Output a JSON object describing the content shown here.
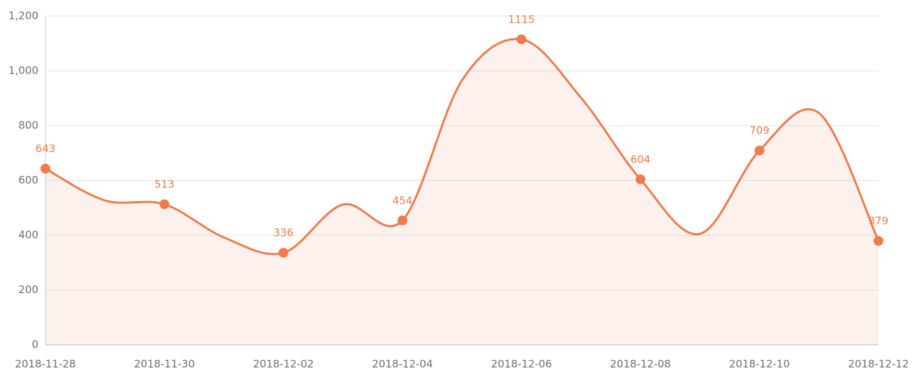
{
  "chart_data": {
    "type": "line",
    "categories": [
      "2018-11-28",
      null,
      "2018-11-30",
      null,
      "2018-12-02",
      null,
      "2018-12-04",
      null,
      "2018-12-06",
      null,
      "2018-12-08",
      null,
      "2018-12-10",
      null,
      "2018-12-12"
    ],
    "series": [
      {
        "color": "#f07a4c",
        "values": [
          643,
          527,
          513,
          392,
          336,
          512,
          454,
          965,
          1115,
          902,
          604,
          405,
          709,
          846,
          379
        ]
      }
    ],
    "ylim": [
      0,
      1200
    ],
    "yticks": [
      0,
      200,
      400,
      600,
      800,
      {
        "value": 1000,
        "label": "1,000"
      },
      {
        "value": 1200,
        "label": "1,200"
      }
    ],
    "grid": true,
    "area": true
  }
}
